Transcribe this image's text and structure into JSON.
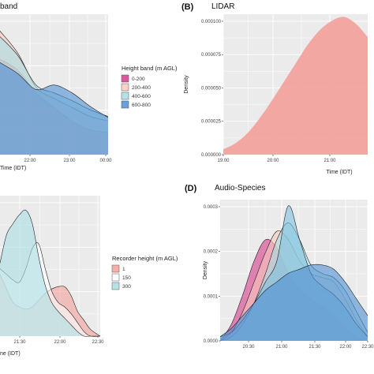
{
  "colors": {
    "panel_bg": "#ebebeb",
    "pink": "#d63a8a",
    "salmon": "#f4a09a",
    "peach": "#f7c9bd",
    "light_teal": "#a9dde3",
    "mid_blue": "#7fbfe0",
    "blue": "#4f8fd3"
  },
  "chart_data": [
    {
      "id": "A",
      "type": "area",
      "letter": "",
      "title": "band",
      "xlabel": "Time (IDT)",
      "ylabel": "",
      "x_ticks": [
        "22:00",
        "23:00",
        "00:00"
      ],
      "x": [
        0,
        0.5,
        1,
        1.5,
        2,
        2.5,
        3
      ],
      "xlim": [
        0,
        3
      ],
      "ylim": [
        0,
        1.25
      ],
      "grid": true,
      "legend": {
        "title": "Height band (m AGL)",
        "entries": [
          "0-200",
          "200-400",
          "400-600",
          "600-800"
        ],
        "position": "right"
      },
      "series": [
        {
          "name": "0-200",
          "color": "#d63a8a",
          "values": [
            0.85,
            0.75,
            0.55,
            0.42,
            0.3,
            0.22,
            0.2
          ]
        },
        {
          "name": "200-400",
          "color": "#f7c9bd",
          "values": [
            1.1,
            0.9,
            0.6,
            0.5,
            0.42,
            0.34,
            0.3
          ]
        },
        {
          "name": "400-600",
          "color": "#a9dde3",
          "values": [
            1.05,
            0.88,
            0.62,
            0.55,
            0.48,
            0.4,
            0.34
          ]
        },
        {
          "name": "600-800",
          "color": "#4f8fd3",
          "values": [
            0.82,
            0.72,
            0.58,
            0.62,
            0.55,
            0.43,
            0.33
          ]
        }
      ]
    },
    {
      "id": "B",
      "type": "area",
      "letter": "(B)",
      "title": "LIDAR",
      "xlabel": "Time (IDT)",
      "ylabel": "Density",
      "y_ticks": [
        "0.000000",
        "0.000025",
        "0.000050",
        "0.000075",
        "0.000100"
      ],
      "x_ticks": [
        "19:00",
        "20:00",
        "21:00"
      ],
      "x": [
        19.0,
        19.25,
        19.5,
        19.75,
        20.0,
        20.25,
        20.5,
        20.75,
        21.0,
        21.25,
        21.5,
        21.75,
        22.0
      ],
      "xlim": [
        19,
        22
      ],
      "ylim": [
        0,
        0.000105
      ],
      "grid": true,
      "series": [
        {
          "name": "",
          "color": "#f4a09a",
          "values": [
            4e-06,
            8.5e-06,
            1.6e-05,
            2.7e-05,
            4e-05,
            5.4e-05,
            6.8e-05,
            8.2e-05,
            9.3e-05,
            0.0001,
            0.000103,
            9.8e-05,
            8.8e-05
          ]
        }
      ]
    },
    {
      "id": "C",
      "type": "area",
      "letter": "",
      "title": "",
      "xlabel": "ne (IDT)",
      "ylabel": "",
      "x_ticks": [
        "21:30",
        "22:00",
        "22:30"
      ],
      "x": [
        20.95,
        21.05,
        21.15,
        21.25,
        21.35,
        21.45,
        21.55,
        21.65,
        21.75,
        21.85,
        21.95,
        22.05,
        22.15,
        22.25,
        22.35,
        22.5
      ],
      "xlim": [
        20.95,
        22.5
      ],
      "ylim": [
        0,
        1.25
      ],
      "grid": true,
      "legend": {
        "title": "Recorder height (m AGL)",
        "entries": [
          "1",
          "150",
          "300"
        ],
        "position": "right"
      },
      "series": [
        {
          "name": "1",
          "color": "#f4a09a",
          "values": [
            0.55,
            0.42,
            0.3,
            0.26,
            0.24,
            0.26,
            0.32,
            0.38,
            0.42,
            0.44,
            0.44,
            0.36,
            0.22,
            0.14,
            0.06,
            0.0
          ]
        },
        {
          "name": "150",
          "color": "#ffffff",
          "values": [
            0.6,
            0.55,
            0.5,
            0.48,
            0.6,
            0.78,
            0.82,
            0.6,
            0.4,
            0.3,
            0.26,
            0.2,
            0.12,
            0.04,
            0.0,
            0.0
          ]
        },
        {
          "name": "300",
          "color": "#a9dde3",
          "values": [
            0.65,
            0.9,
            1.0,
            1.08,
            1.12,
            1.0,
            0.7,
            0.45,
            0.3,
            0.22,
            0.16,
            0.1,
            0.04,
            0.0,
            0.0,
            0.0
          ]
        }
      ]
    },
    {
      "id": "D",
      "type": "area",
      "letter": "(D)",
      "title": "Audio-Species",
      "xlabel": "",
      "ylabel": "Density",
      "y_ticks": [
        "0.0000",
        "0.0001",
        "0.0002",
        "0.0003"
      ],
      "x_ticks": [
        "20:30",
        "21:00",
        "21:30",
        "22:00",
        "22:30"
      ],
      "x": [
        20.15,
        20.35,
        20.55,
        20.75,
        20.95,
        21.15,
        21.35,
        21.55,
        21.75,
        21.95,
        22.15,
        22.35,
        22.55,
        22.75
      ],
      "xlim": [
        20.15,
        22.75
      ],
      "ylim": [
        0,
        0.000335
      ],
      "grid": true,
      "series": [
        {
          "name": "",
          "color": "#d63a8a",
          "values": [
            0.0,
            4e-05,
            0.00011,
            0.00019,
            0.00024,
            0.00022,
            0.00016,
            0.00012,
            0.0001,
            8e-05,
            6e-05,
            3e-05,
            1e-05,
            0.0
          ]
        },
        {
          "name": "",
          "color": "#f7c9bd",
          "values": [
            0.0,
            2e-05,
            7e-05,
            0.00014,
            0.00021,
            0.00026,
            0.00024,
            0.00019,
            0.00016,
            0.00015,
            0.00014,
            0.0001,
            5e-05,
            1e-05
          ]
        },
        {
          "name": "",
          "color": "#a9dde3",
          "values": [
            0.0,
            1e-05,
            4e-05,
            9e-05,
            0.00016,
            0.00024,
            0.00028,
            0.00024,
            0.00018,
            0.00016,
            0.00015,
            0.00012,
            7e-05,
            2e-05
          ]
        },
        {
          "name": "",
          "color": "#7fbfe0",
          "values": [
            1e-05,
            2e-05,
            5e-05,
            9e-05,
            0.00014,
            0.00019,
            0.00032,
            0.00024,
            0.00016,
            0.00013,
            0.00011,
            8e-05,
            4e-05,
            1e-05
          ]
        },
        {
          "name": "",
          "color": "#4f8fd3",
          "values": [
            1e-05,
            3e-05,
            6e-05,
            9e-05,
            0.00012,
            0.00014,
            0.00016,
            0.00017,
            0.00018,
            0.00018,
            0.00017,
            0.00014,
            0.0001,
            6e-05
          ]
        }
      ]
    }
  ]
}
